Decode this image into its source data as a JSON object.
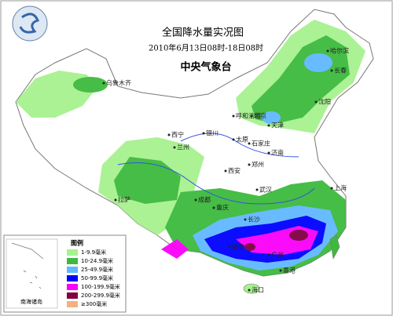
{
  "header": {
    "title": "全国降水量实况图",
    "subtitle": "2010年6月13日08时-18日08时",
    "agency": "中央气象台"
  },
  "legend": {
    "title": "图例",
    "items": [
      {
        "label": "1-9.9毫米",
        "color": "#a6f28f"
      },
      {
        "label": "10-24.9毫米",
        "color": "#3dba3d"
      },
      {
        "label": "25-49.9毫米",
        "color": "#61b8ff"
      },
      {
        "label": "50-99.9毫米",
        "color": "#0000fe"
      },
      {
        "label": "100-199.9毫米",
        "color": "#fa00fa"
      },
      {
        "label": "200-299.9毫米",
        "color": "#800040"
      },
      {
        "label": "≥300毫米",
        "color": "#f5b080"
      }
    ]
  },
  "inset": {
    "label": "南海诸岛"
  },
  "cities": [
    {
      "label": "乌鲁木齐"
    },
    {
      "label": "西宁"
    },
    {
      "label": "兰州"
    },
    {
      "label": "银川"
    },
    {
      "label": "呼和浩特"
    },
    {
      "label": "北京"
    },
    {
      "label": "天津"
    },
    {
      "label": "太原"
    },
    {
      "label": "石家庄"
    },
    {
      "label": "济南"
    },
    {
      "label": "郑州"
    },
    {
      "label": "西安"
    },
    {
      "label": "拉萨"
    },
    {
      "label": "成都"
    },
    {
      "label": "重庆"
    },
    {
      "label": "武汉"
    },
    {
      "label": "长沙"
    },
    {
      "label": "上海"
    },
    {
      "label": "南宁"
    },
    {
      "label": "广州"
    },
    {
      "label": "香港"
    },
    {
      "label": "海口"
    },
    {
      "label": "长春"
    },
    {
      "label": "沈阳"
    },
    {
      "label": "哈尔滨"
    }
  ]
}
